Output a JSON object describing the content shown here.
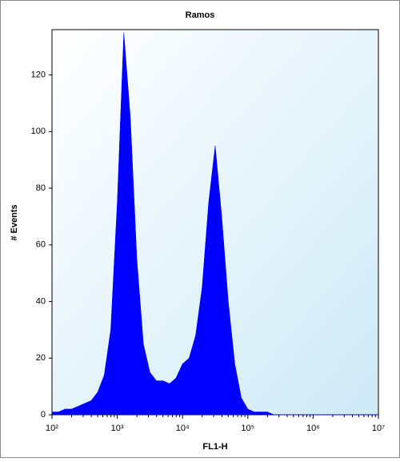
{
  "chart_data": {
    "type": "area",
    "title": "Ramos",
    "x_label": "FL1-H",
    "y_label": "# Events",
    "x": [
      100,
      126,
      158,
      200,
      251,
      316,
      398,
      501,
      631,
      794,
      1000,
      1259,
      1585,
      1995,
      2512,
      3162,
      3981,
      5012,
      6310,
      7943,
      10000,
      12589,
      15849,
      19953,
      25119,
      31623,
      39811,
      50119,
      63096,
      79433,
      100000,
      125893,
      158489,
      199526,
      251189,
      316228,
      398107,
      501187,
      630957,
      794328,
      1000000,
      1258925,
      1584893,
      1995262,
      2511886,
      3162278,
      3981072,
      5011872,
      6309573,
      7943282,
      10000000
    ],
    "values": [
      1,
      1,
      2,
      2,
      3,
      4,
      5,
      8,
      14,
      30,
      75,
      135,
      105,
      55,
      25,
      15,
      12,
      12,
      11,
      13,
      18,
      20,
      28,
      45,
      75,
      95,
      70,
      40,
      18,
      6,
      2,
      1,
      1,
      1,
      0,
      0,
      0,
      0,
      0,
      0,
      0,
      0,
      0,
      0,
      0,
      0,
      0,
      0,
      0,
      0,
      0
    ],
    "color": "#0000ff",
    "xlog": true,
    "xlim": [
      100,
      10000000
    ],
    "ylim": [
      0,
      136
    ],
    "xticks": [
      {
        "value": 100,
        "label": "10²"
      },
      {
        "value": 1000,
        "label": "10³"
      },
      {
        "value": 10000,
        "label": "10⁴"
      },
      {
        "value": 100000,
        "label": "10⁵"
      },
      {
        "value": 1000000,
        "label": "10⁶"
      },
      {
        "value": 10000000,
        "label": "10⁷"
      }
    ],
    "yticks": [
      0,
      20,
      40,
      60,
      80,
      100,
      120
    ]
  }
}
